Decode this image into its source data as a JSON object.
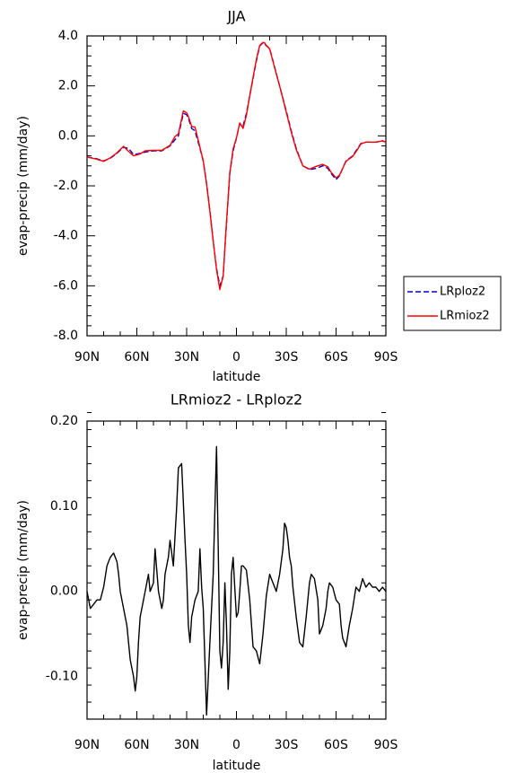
{
  "chart_data": [
    {
      "type": "line",
      "title": "JJA",
      "xlabel": "latitude",
      "ylabel": "evap-precip (mm/day)",
      "xlim": [
        90,
        -90
      ],
      "ylim": [
        -8,
        4
      ],
      "xticks": [
        90,
        60,
        30,
        0,
        -30,
        -60,
        -90
      ],
      "xtick_labels": [
        "90N",
        "60N",
        "30N",
        "0",
        "30S",
        "60S",
        "90S"
      ],
      "yticks": [
        -8,
        -6,
        -4,
        -2,
        0,
        2,
        4
      ],
      "ytick_labels": [
        "-8.0",
        "-6.0",
        "-4.0",
        "-2.0",
        "0.0",
        "2.0",
        "4.0"
      ],
      "legend": "outside-right",
      "grid": false,
      "series": [
        {
          "name": "LRploz2",
          "color": "#0000cc",
          "dash": "dashed",
          "x": [
            90,
            85,
            80,
            76,
            72,
            68,
            65,
            62,
            58,
            55,
            50,
            45,
            40,
            37,
            35,
            32,
            30,
            29,
            27,
            25,
            22,
            20,
            18,
            16,
            14,
            12,
            10,
            8,
            7,
            6,
            5,
            4,
            2,
            0,
            -2,
            -4,
            -6,
            -8,
            -10,
            -12,
            -14,
            -16,
            -17,
            -18,
            -19,
            -20,
            -22,
            -24,
            -26,
            -28,
            -30,
            -33,
            -36,
            -40,
            -44,
            -48,
            -52,
            -55,
            -57,
            -60,
            -62,
            -64,
            -66,
            -70,
            -72,
            -75,
            -78,
            -80,
            -84,
            -88,
            -90
          ],
          "y": [
            -0.85,
            -0.9,
            -1.0,
            -0.9,
            -0.7,
            -0.45,
            -0.5,
            -0.75,
            -0.7,
            -0.65,
            -0.6,
            -0.6,
            -0.4,
            -0.15,
            0.0,
            0.9,
            0.85,
            0.7,
            0.3,
            0.2,
            -0.5,
            -1.0,
            -1.9,
            -3.0,
            -4.2,
            -5.3,
            -6.0,
            -5.6,
            -4.5,
            -3.5,
            -2.5,
            -1.5,
            -0.6,
            -0.1,
            0.5,
            0.4,
            0.9,
            1.6,
            2.3,
            3.0,
            3.6,
            3.72,
            3.7,
            3.6,
            3.55,
            3.5,
            3.0,
            2.5,
            2.0,
            1.5,
            1.0,
            0.2,
            -0.5,
            -1.2,
            -1.35,
            -1.3,
            -1.2,
            -1.3,
            -1.5,
            -1.75,
            -1.6,
            -1.3,
            -1.0,
            -0.8,
            -0.6,
            -0.3,
            -0.25,
            -0.25,
            -0.25,
            -0.2,
            -0.25
          ]
        },
        {
          "name": "LRmioz2",
          "color": "#ff0000",
          "dash": "solid",
          "x": [
            90,
            85,
            80,
            76,
            72,
            68,
            65,
            62,
            58,
            55,
            50,
            45,
            40,
            37,
            35,
            32,
            30,
            29,
            27,
            25,
            22,
            20,
            18,
            16,
            14,
            12,
            10,
            8,
            7,
            6,
            5,
            4,
            2,
            0,
            -2,
            -4,
            -6,
            -8,
            -10,
            -12,
            -14,
            -16,
            -17,
            -18,
            -19,
            -20,
            -22,
            -24,
            -26,
            -28,
            -30,
            -33,
            -36,
            -40,
            -44,
            -48,
            -52,
            -55,
            -57,
            -60,
            -62,
            -64,
            -66,
            -70,
            -72,
            -75,
            -78,
            -80,
            -84,
            -88,
            -90
          ],
          "y": [
            -0.85,
            -0.92,
            -1.02,
            -0.88,
            -0.68,
            -0.42,
            -0.62,
            -0.8,
            -0.72,
            -0.6,
            -0.58,
            -0.58,
            -0.38,
            -0.02,
            0.08,
            1.0,
            0.92,
            0.78,
            0.38,
            0.35,
            -0.45,
            -1.0,
            -1.92,
            -3.02,
            -4.22,
            -5.35,
            -6.15,
            -5.62,
            -4.5,
            -3.45,
            -2.45,
            -1.48,
            -0.52,
            -0.08,
            0.52,
            0.3,
            0.82,
            1.6,
            2.34,
            3.06,
            3.62,
            3.74,
            3.72,
            3.62,
            3.56,
            3.48,
            2.98,
            2.48,
            2.0,
            1.48,
            0.95,
            0.15,
            -0.55,
            -1.2,
            -1.33,
            -1.22,
            -1.14,
            -1.24,
            -1.45,
            -1.68,
            -1.58,
            -1.3,
            -1.02,
            -0.82,
            -0.64,
            -0.32,
            -0.25,
            -0.25,
            -0.25,
            -0.2,
            -0.25
          ]
        }
      ]
    },
    {
      "type": "line",
      "title": "LRmioz2 - LRploz2",
      "xlabel": "latitude",
      "ylabel": "evap-precip (mm/day)",
      "xlim": [
        90,
        -90
      ],
      "ylim": [
        -0.15,
        0.2
      ],
      "xticks": [
        90,
        60,
        30,
        0,
        -30,
        -60,
        -90
      ],
      "xtick_labels": [
        "90N",
        "60N",
        "30N",
        "0",
        "30S",
        "60S",
        "90S"
      ],
      "yticks": [
        -0.1,
        0.0,
        0.1,
        0.2
      ],
      "ytick_labels": [
        "-0.10",
        "0.00",
        "0.10",
        "0.20"
      ],
      "grid": false,
      "series": [
        {
          "color": "#000000",
          "dash": "solid",
          "x": [
            90,
            88,
            86,
            84,
            82,
            80,
            78,
            76,
            74,
            72,
            71,
            70,
            68,
            66,
            64,
            62,
            61,
            60,
            59,
            58,
            56,
            54,
            53,
            52,
            50,
            49,
            47,
            45,
            44,
            43,
            41,
            40,
            38,
            36,
            35,
            33,
            31,
            30,
            29,
            28,
            27,
            25,
            23,
            22,
            21,
            20,
            19,
            18,
            16,
            14,
            12,
            11,
            10,
            9,
            8,
            7,
            6,
            5,
            4,
            3,
            2,
            1,
            0,
            -1,
            -2,
            -3,
            -4,
            -6,
            -8,
            -10,
            -12,
            -14,
            -16,
            -18,
            -20,
            -22,
            -24,
            -26,
            -28,
            -29,
            -30,
            -31,
            -32,
            -33,
            -34,
            -36,
            -38,
            -40,
            -42,
            -44,
            -45,
            -47,
            -49,
            -50,
            -52,
            -54,
            -55,
            -56,
            -58,
            -60,
            -62,
            -63,
            -64,
            -65,
            -66,
            -68,
            -70,
            -72,
            -74,
            -76,
            -78,
            -80,
            -82,
            -84,
            -86,
            -88,
            -90
          ],
          "y": [
            0.0,
            -0.02,
            -0.015,
            -0.01,
            -0.01,
            0.005,
            0.03,
            0.04,
            0.045,
            0.035,
            0.02,
            0.0,
            -0.02,
            -0.04,
            -0.08,
            -0.1,
            -0.117,
            -0.1,
            -0.06,
            -0.03,
            -0.01,
            0.01,
            0.02,
            0.0,
            0.01,
            0.05,
            0.0,
            -0.02,
            -0.01,
            0.02,
            0.04,
            0.06,
            0.03,
            0.1,
            0.145,
            0.15,
            0.06,
            0.02,
            -0.04,
            -0.06,
            -0.03,
            -0.01,
            0.0,
            0.05,
            0.005,
            -0.02,
            -0.08,
            -0.145,
            -0.06,
            0.02,
            0.17,
            0.05,
            -0.07,
            -0.09,
            -0.06,
            0.01,
            -0.04,
            -0.115,
            -0.07,
            0.02,
            0.04,
            0.005,
            -0.03,
            -0.025,
            0.0,
            0.03,
            0.03,
            0.025,
            -0.01,
            -0.065,
            -0.07,
            -0.085,
            -0.05,
            -0.005,
            0.02,
            0.01,
            0.0,
            0.02,
            0.05,
            0.08,
            0.075,
            0.06,
            0.04,
            0.03,
            0.005,
            -0.03,
            -0.06,
            -0.065,
            -0.03,
            0.01,
            0.02,
            0.015,
            -0.01,
            -0.05,
            -0.04,
            -0.02,
            0.0,
            0.01,
            0.005,
            -0.01,
            -0.015,
            -0.04,
            -0.055,
            -0.06,
            -0.065,
            -0.04,
            -0.02,
            0.005,
            0.0,
            0.015,
            0.005,
            0.01,
            0.005,
            0.005,
            0.0,
            0.005,
            0.0
          ]
        }
      ]
    }
  ]
}
